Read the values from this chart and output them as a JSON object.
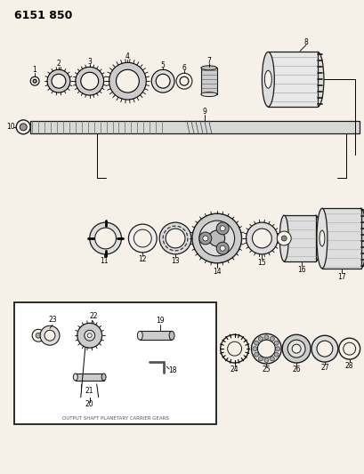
{
  "title": "6151 850",
  "bg_color": "#f5f0e8",
  "line_color": "#1a1a1a",
  "fig_width": 4.1,
  "fig_height": 5.33,
  "dpi": 100,
  "caption": "OUTPUT SHAFT PLANETARY CARRIER GEARS"
}
